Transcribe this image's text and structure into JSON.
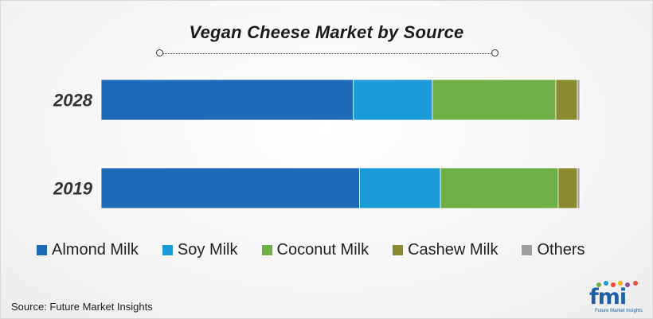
{
  "chart_data": {
    "type": "bar",
    "orientation": "horizontal",
    "stacked": true,
    "title": "Vegan Cheese Market by Source",
    "categories": [
      "2028",
      "2019"
    ],
    "series": [
      {
        "name": "Almond Milk",
        "color": "#1f6ab7",
        "values": [
          52.7,
          54.0
        ]
      },
      {
        "name": "Soy Milk",
        "color": "#1b9ad8",
        "values": [
          16.5,
          16.9
        ]
      },
      {
        "name": "Coconut Milk",
        "color": "#6faf45",
        "values": [
          25.8,
          24.6
        ]
      },
      {
        "name": "Cashew Milk",
        "color": "#8a8a31",
        "values": [
          4.5,
          4.0
        ]
      },
      {
        "name": "Others",
        "color": "#9e9e9e",
        "values": [
          0.5,
          0.5
        ]
      }
    ],
    "xlim": [
      0,
      100
    ],
    "grid": false,
    "legend_position": "bottom"
  },
  "source": "Source: Future Market Insights",
  "logo": {
    "text": "fmi",
    "tagline": "Future Market Insights",
    "icon": "fmi-logo-icon"
  }
}
